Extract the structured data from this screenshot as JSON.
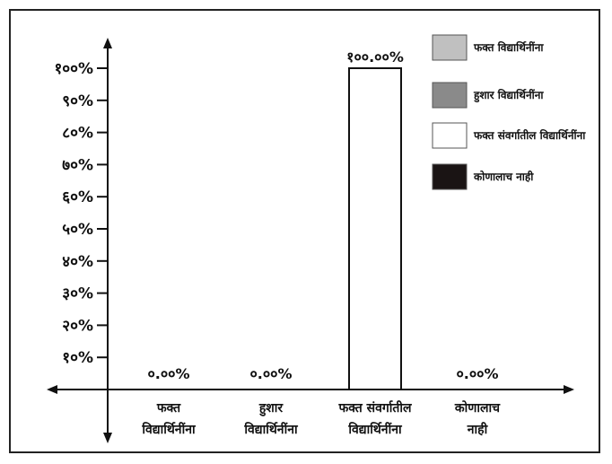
{
  "chart_data": {
    "type": "bar",
    "categories": [
      [
        "फक्त",
        "विद्यार्थिनींना"
      ],
      [
        "हुशार",
        "विद्यार्थिनींना"
      ],
      [
        "फक्त संवर्गातील",
        "विद्यार्थिनींना"
      ],
      [
        "कोणालाच",
        "नाही"
      ]
    ],
    "values": [
      0,
      0,
      100,
      0
    ],
    "value_labels": [
      "०.००%",
      "०.००%",
      "१००.००%",
      "०.००%"
    ],
    "y_ticks": [
      "१०%",
      "२०%",
      "३०%",
      "४०%",
      "५०%",
      "६०%",
      "७०%",
      "८०%",
      "९०%",
      "१००%"
    ],
    "ylim": [
      0,
      100
    ],
    "title": "",
    "xlabel": "",
    "ylabel": "",
    "grid": false,
    "legend_position": "right",
    "legend": [
      {
        "label": "फक्त विद्यार्थिनींना",
        "color": "#c0c0c0"
      },
      {
        "label": "हुशार विद्यार्थिनींना",
        "color": "#8a8a8a"
      },
      {
        "label": "फक्त संवर्गातील विद्यार्थिनींना",
        "color": "#ffffff"
      },
      {
        "label": "कोणालाच नाही",
        "color": "#1a1414"
      }
    ],
    "bar_color": "#ffffff",
    "bar_stroke": "#111111"
  }
}
